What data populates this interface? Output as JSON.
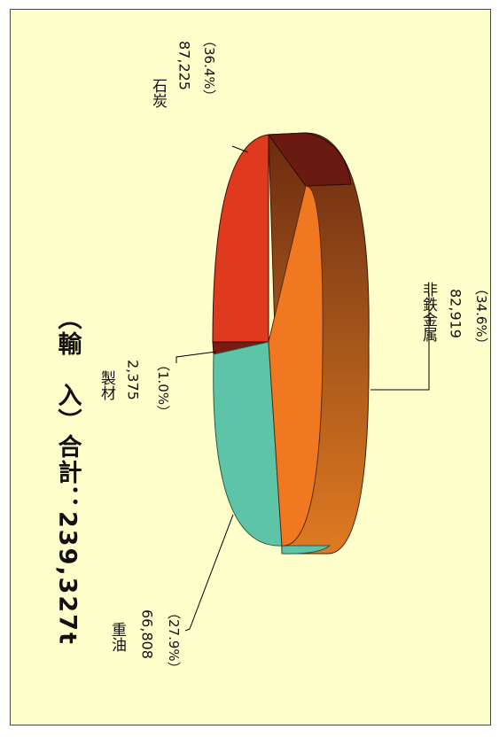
{
  "chart_data": {
    "type": "pie",
    "title": "（輸　入）合計：239,327t",
    "slices": [
      {
        "name": "石炭",
        "value": "87,225",
        "percent": "（36.4%）",
        "color": "#e03a1e",
        "side": "#6b1a12"
      },
      {
        "name": "非鉄金属",
        "value": "82,919",
        "percent": "（34.6%）",
        "color": "#f07820",
        "side": "#8c4010"
      },
      {
        "name": "重油",
        "value": "66,808",
        "percent": "（27.9%）",
        "color": "#5ec4a8",
        "side": "#3f9c85"
      },
      {
        "name": "製材",
        "value": "2,375",
        "percent": "（1.0%）",
        "color": "#d03018",
        "side": "#7a1a10"
      }
    ],
    "legend": "none"
  }
}
